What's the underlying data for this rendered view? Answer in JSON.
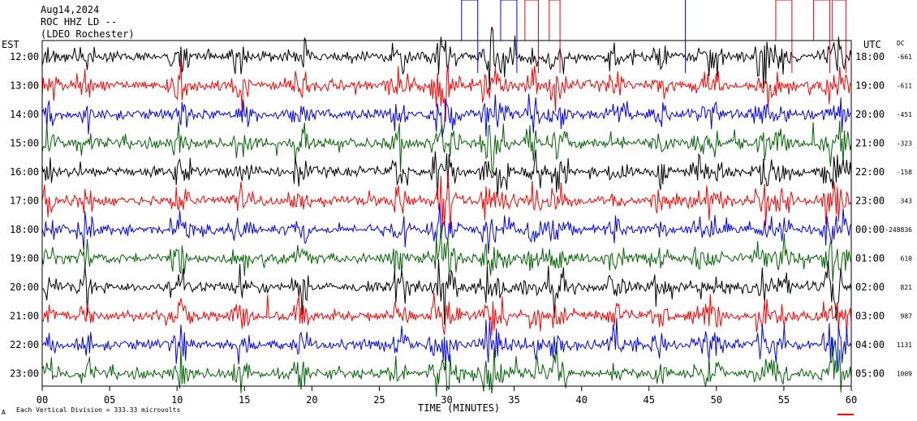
{
  "header": {
    "date": "Aug14,2024",
    "station": "ROC HHZ LD --",
    "location": "(LDEO Rochester)"
  },
  "left_axis_title": "EST",
  "right_axis_title": "UTC",
  "dc_title": "DC",
  "footer": {
    "scale_note": "Each Vertical Division = 333.33 microvolts",
    "marker": "A"
  },
  "chart_data": {
    "type": "line",
    "title": "",
    "xlabel": "TIME (MINUTES)",
    "ylabel": "",
    "xlim": [
      0,
      60
    ],
    "x_ticks": [
      "00",
      "05",
      "10",
      "15",
      "20",
      "25",
      "30",
      "35",
      "40",
      "45",
      "50",
      "55",
      "60"
    ],
    "trace_colors": [
      "#000000",
      "#ff0000",
      "#0000ff",
      "#006400"
    ],
    "rows": [
      {
        "est": "12:00",
        "utc": "18:00",
        "dc": "-661"
      },
      {
        "est": "13:00",
        "utc": "19:00",
        "dc": "-611"
      },
      {
        "est": "14:00",
        "utc": "20:00",
        "dc": "-451"
      },
      {
        "est": "15:00",
        "utc": "21:00",
        "dc": "-323"
      },
      {
        "est": "16:00",
        "utc": "22:00",
        "dc": "-158"
      },
      {
        "est": "17:00",
        "utc": "23:00",
        "dc": "343"
      },
      {
        "est": "18:00",
        "utc": "00:00",
        "dc": "-248836"
      },
      {
        "est": "19:00",
        "utc": "01:00",
        "dc": "610"
      },
      {
        "est": "20:00",
        "utc": "02:00",
        "dc": "821"
      },
      {
        "est": "21:00",
        "utc": "03:00",
        "dc": "987"
      },
      {
        "est": "22:00",
        "utc": "04:00",
        "dc": "1131"
      },
      {
        "est": "23:00",
        "utc": "05:00",
        "dc": "1009"
      }
    ]
  }
}
